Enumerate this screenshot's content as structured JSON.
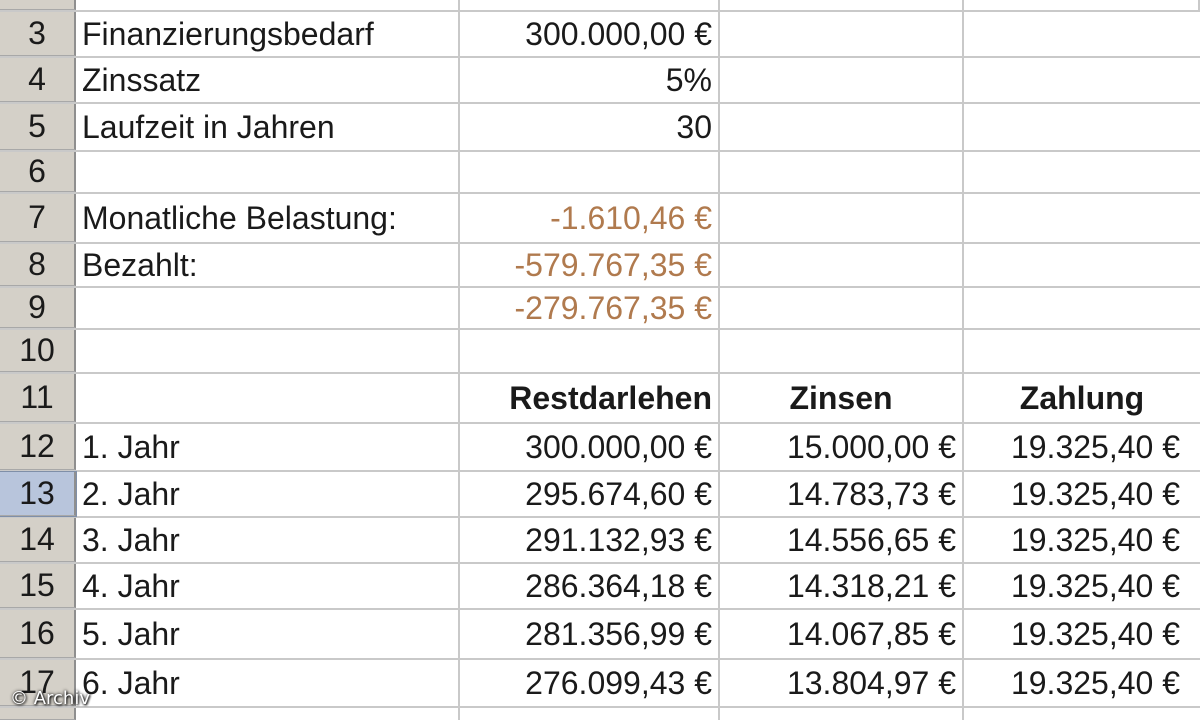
{
  "sheet": {
    "rows": [
      {
        "num": "3",
        "a": "Finanzierungsbedarf",
        "b": "300.000,00 €",
        "c": "",
        "d": ""
      },
      {
        "num": "4",
        "a": "Zinssatz",
        "b": "5%",
        "c": "",
        "d": ""
      },
      {
        "num": "5",
        "a": "Laufzeit in Jahren",
        "b": "30",
        "c": "",
        "d": ""
      },
      {
        "num": "6",
        "a": "",
        "b": "",
        "c": "",
        "d": ""
      },
      {
        "num": "7",
        "a": "Monatliche Belastung:",
        "b": "-1.610,46 €",
        "c": "",
        "d": ""
      },
      {
        "num": "8",
        "a": "Bezahlt:",
        "b": "-579.767,35 €",
        "c": "",
        "d": ""
      },
      {
        "num": "9",
        "a": "",
        "b": "-279.767,35 €",
        "c": "",
        "d": ""
      },
      {
        "num": "10",
        "a": "",
        "b": "",
        "c": "",
        "d": ""
      },
      {
        "num": "11",
        "a": "",
        "b": "Restdarlehen",
        "c": "Zinsen",
        "d": "Zahlung"
      },
      {
        "num": "12",
        "a": "1. Jahr",
        "b": "300.000,00 €",
        "c": "15.000,00 €",
        "d": "19.325,40 €"
      },
      {
        "num": "13",
        "a": "2. Jahr",
        "b": "295.674,60 €",
        "c": "14.783,73 €",
        "d": "19.325,40 €"
      },
      {
        "num": "14",
        "a": "3. Jahr",
        "b": "291.132,93 €",
        "c": "14.556,65 €",
        "d": "19.325,40 €"
      },
      {
        "num": "15",
        "a": "4. Jahr",
        "b": "286.364,18 €",
        "c": "14.318,21 €",
        "d": "19.325,40 €"
      },
      {
        "num": "16",
        "a": "5. Jahr",
        "b": "281.356,99 €",
        "c": "14.067,85 €",
        "d": "19.325,40 €"
      },
      {
        "num": "17",
        "a": "6. Jahr",
        "b": "276.099,43 €",
        "c": "13.804,97 €",
        "d": "19.325,40 €"
      }
    ],
    "selected_row": "13",
    "negative_color": "#b07a4e",
    "header_color": "#d4d0c8",
    "selected_header_color": "#b8c5dc"
  },
  "watermark": "© Archiv"
}
